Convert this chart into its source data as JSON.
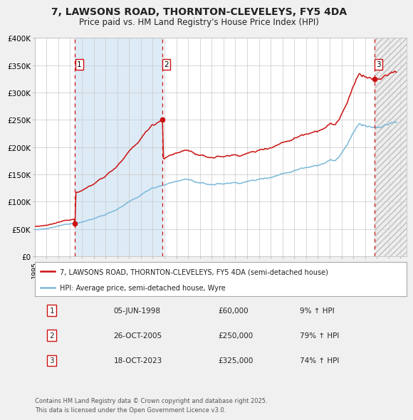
{
  "title": "7, LAWSONS ROAD, THORNTON-CLEVELEYS, FY5 4DA",
  "subtitle": "Price paid vs. HM Land Registry's House Price Index (HPI)",
  "title_fontsize": 10,
  "subtitle_fontsize": 8.5,
  "hpi_color": "#7ab8d9",
  "price_color": "#cc1111",
  "background_color": "#f0f0f0",
  "plot_bg_color": "#ffffff",
  "grid_color": "#c8c8c8",
  "shade1_color": "#d8e8f5",
  "xmin": 1995.0,
  "xmax": 2026.5,
  "ymin": 0,
  "ymax": 400000,
  "yticks": [
    0,
    50000,
    100000,
    150000,
    200000,
    250000,
    300000,
    350000,
    400000
  ],
  "ytick_labels": [
    "£0",
    "£50K",
    "£100K",
    "£150K",
    "£200K",
    "£250K",
    "£300K",
    "£350K",
    "£400K"
  ],
  "sale1_date": 1998.42,
  "sale1_price": 60000,
  "sale1_label": "1",
  "sale2_date": 2005.8,
  "sale2_price": 250000,
  "sale2_label": "2",
  "sale3_date": 2023.79,
  "sale3_price": 325000,
  "sale3_label": "3",
  "legend_line1": "7, LAWSONS ROAD, THORNTON-CLEVELEYS, FY5 4DA (semi-detached house)",
  "legend_line2": "HPI: Average price, semi-detached house, Wyre",
  "table_rows": [
    [
      "1",
      "05-JUN-1998",
      "£60,000",
      "9% ↑ HPI"
    ],
    [
      "2",
      "26-OCT-2005",
      "£250,000",
      "79% ↑ HPI"
    ],
    [
      "3",
      "18-OCT-2023",
      "£325,000",
      "74% ↑ HPI"
    ]
  ],
  "footnote": "Contains HM Land Registry data © Crown copyright and database right 2025.\nThis data is licensed under the Open Government Licence v3.0.",
  "dashed_line_color": "#cc1111"
}
